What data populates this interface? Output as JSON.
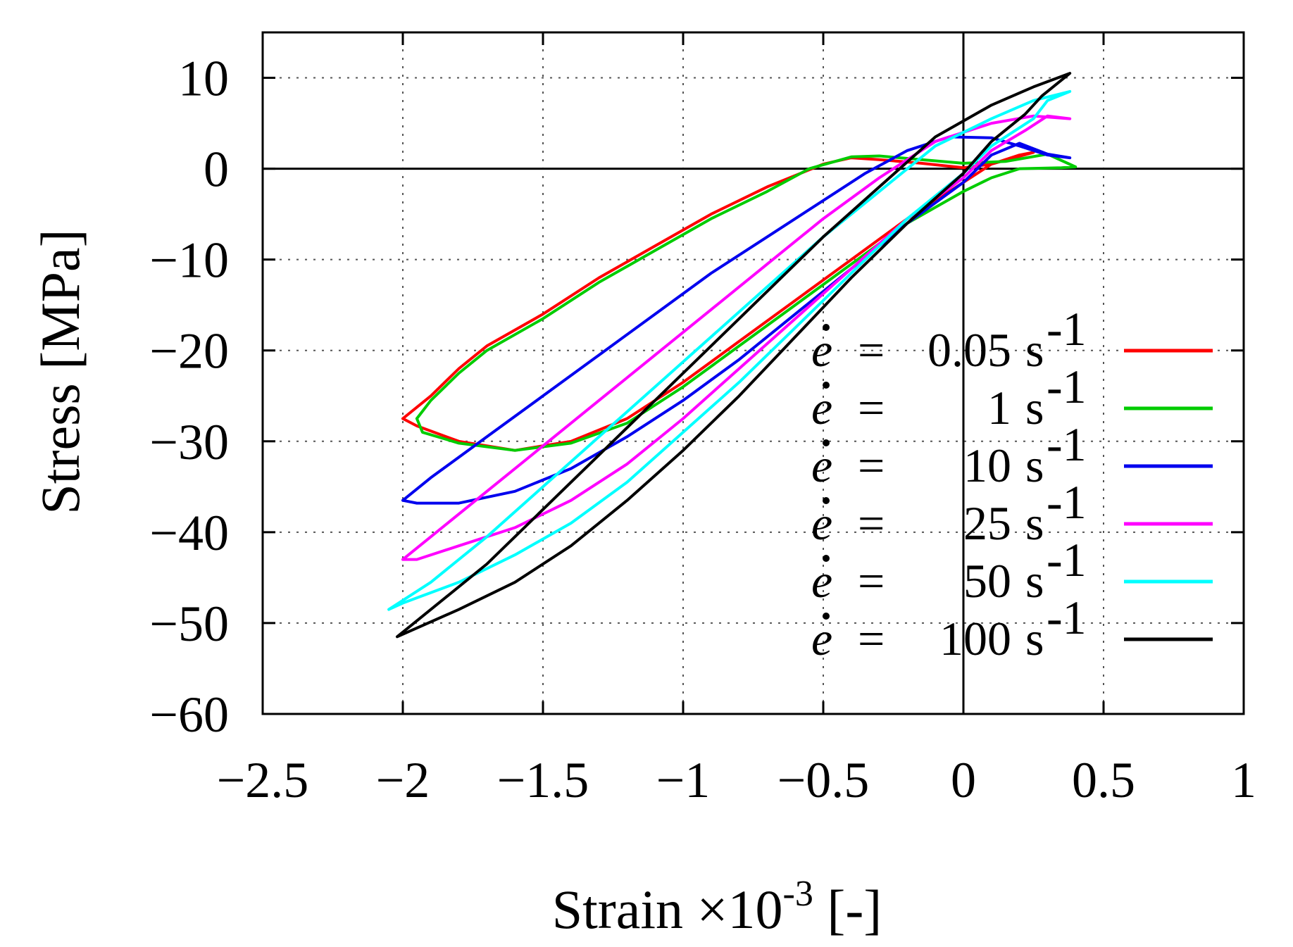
{
  "chart_data": {
    "type": "line",
    "title": "",
    "xlabel": "Strain ×10",
    "xlabel_exponent": "-3",
    "xlabel_unit": " [-]",
    "ylabel": "Stress [MPa]",
    "xlim": [
      -2.5,
      1
    ],
    "ylim": [
      -60,
      15
    ],
    "xticks": [
      -2.5,
      -2,
      -1.5,
      -1,
      -0.5,
      0,
      0.5,
      1
    ],
    "xtick_labels": [
      "−2.5",
      "−2",
      "−1.5",
      "−1",
      "−0.5",
      "0",
      "0.5",
      "1"
    ],
    "yticks": [
      10,
      0,
      -10,
      -20,
      -30,
      -40,
      -50,
      -60
    ],
    "ytick_labels": [
      "10",
      "0",
      "−10",
      "−20",
      "−30",
      "−40",
      "−50",
      "−60"
    ],
    "grid": true,
    "legend_position": "bottom-right",
    "series": [
      {
        "name": "ė = 0.05 s-1",
        "legend_symbol": "e",
        "legend_equals": "=",
        "legend_rate": "0.05",
        "legend_unit": "s",
        "legend_exp": "-1",
        "color": "#ff0000",
        "points": [
          [
            -2.0,
            -27.5
          ],
          [
            -1.9,
            -25.0
          ],
          [
            -1.8,
            -22.0
          ],
          [
            -1.7,
            -19.5
          ],
          [
            -1.5,
            -16.0
          ],
          [
            -1.3,
            -12.0
          ],
          [
            -1.1,
            -8.5
          ],
          [
            -0.9,
            -5.0
          ],
          [
            -0.7,
            -2.0
          ],
          [
            -0.5,
            0.5
          ],
          [
            -0.4,
            1.2
          ],
          [
            -0.3,
            1.0
          ],
          [
            -0.15,
            0.6
          ],
          [
            0.0,
            0.1
          ],
          [
            0.1,
            0.5
          ],
          [
            0.25,
            1.8
          ],
          [
            0.2,
            1.5
          ],
          [
            0.1,
            0.5
          ],
          [
            0.0,
            -1.5
          ],
          [
            -0.2,
            -5.5
          ],
          [
            -0.4,
            -10.0
          ],
          [
            -0.6,
            -14.5
          ],
          [
            -0.8,
            -19.0
          ],
          [
            -1.0,
            -23.5
          ],
          [
            -1.2,
            -27.5
          ],
          [
            -1.4,
            -30.0
          ],
          [
            -1.6,
            -31.0
          ],
          [
            -1.8,
            -30.0
          ],
          [
            -1.95,
            -28.3
          ],
          [
            -2.0,
            -27.5
          ]
        ]
      },
      {
        "name": "ė = 1 s-1",
        "legend_symbol": "e",
        "legend_equals": "=",
        "legend_rate": "1",
        "legend_unit": "s",
        "legend_exp": "-1",
        "color": "#00cc00",
        "points": [
          [
            -1.95,
            -27.5
          ],
          [
            -1.9,
            -25.5
          ],
          [
            -1.8,
            -22.5
          ],
          [
            -1.7,
            -20.0
          ],
          [
            -1.5,
            -16.5
          ],
          [
            -1.3,
            -12.5
          ],
          [
            -1.1,
            -9.0
          ],
          [
            -0.9,
            -5.5
          ],
          [
            -0.7,
            -2.5
          ],
          [
            -0.55,
            0.0
          ],
          [
            -0.4,
            1.3
          ],
          [
            -0.3,
            1.4
          ],
          [
            -0.15,
            1.0
          ],
          [
            0.0,
            0.6
          ],
          [
            0.15,
            0.8
          ],
          [
            0.3,
            1.6
          ],
          [
            0.4,
            0.2
          ],
          [
            0.35,
            0.1
          ],
          [
            0.2,
            0.0
          ],
          [
            0.1,
            -1.0
          ],
          [
            0.0,
            -2.5
          ],
          [
            -0.2,
            -6.0
          ],
          [
            -0.4,
            -10.5
          ],
          [
            -0.6,
            -15.0
          ],
          [
            -0.8,
            -19.5
          ],
          [
            -1.0,
            -24.0
          ],
          [
            -1.2,
            -28.0
          ],
          [
            -1.4,
            -30.2
          ],
          [
            -1.6,
            -31.0
          ],
          [
            -1.8,
            -30.2
          ],
          [
            -1.93,
            -29.0
          ],
          [
            -1.95,
            -27.5
          ]
        ]
      },
      {
        "name": "ė = 10 s-1",
        "legend_symbol": "e",
        "legend_equals": "=",
        "legend_rate": "10",
        "legend_unit": "s",
        "legend_exp": "-1",
        "color": "#0000ee",
        "points": [
          [
            -2.0,
            -36.5
          ],
          [
            -1.9,
            -34.0
          ],
          [
            -1.7,
            -29.5
          ],
          [
            -1.5,
            -25.0
          ],
          [
            -1.3,
            -20.5
          ],
          [
            -1.1,
            -16.0
          ],
          [
            -0.9,
            -11.5
          ],
          [
            -0.7,
            -7.5
          ],
          [
            -0.5,
            -3.5
          ],
          [
            -0.35,
            -0.5
          ],
          [
            -0.2,
            2.0
          ],
          [
            -0.05,
            3.5
          ],
          [
            0.1,
            3.4
          ],
          [
            0.2,
            2.5
          ],
          [
            0.3,
            1.5
          ],
          [
            0.38,
            1.2
          ],
          [
            0.3,
            1.6
          ],
          [
            0.2,
            2.8
          ],
          [
            0.1,
            1.5
          ],
          [
            0.0,
            -1.5
          ],
          [
            -0.2,
            -6.0
          ],
          [
            -0.4,
            -11.0
          ],
          [
            -0.6,
            -16.0
          ],
          [
            -0.8,
            -21.0
          ],
          [
            -1.0,
            -25.5
          ],
          [
            -1.2,
            -29.5
          ],
          [
            -1.4,
            -33.0
          ],
          [
            -1.6,
            -35.5
          ],
          [
            -1.8,
            -36.8
          ],
          [
            -1.95,
            -36.8
          ],
          [
            -2.0,
            -36.5
          ]
        ]
      },
      {
        "name": "ė = 25 s-1",
        "legend_symbol": "e",
        "legend_equals": "=",
        "legend_rate": "25",
        "legend_unit": "s",
        "legend_exp": "-1",
        "color": "#ff00ff",
        "points": [
          [
            -2.0,
            -43.0
          ],
          [
            -1.9,
            -40.5
          ],
          [
            -1.7,
            -35.5
          ],
          [
            -1.5,
            -30.5
          ],
          [
            -1.3,
            -25.5
          ],
          [
            -1.1,
            -20.5
          ],
          [
            -0.9,
            -15.5
          ],
          [
            -0.7,
            -10.5
          ],
          [
            -0.5,
            -5.5
          ],
          [
            -0.3,
            -1.0
          ],
          [
            -0.1,
            3.0
          ],
          [
            0.1,
            5.0
          ],
          [
            0.25,
            5.8
          ],
          [
            0.38,
            5.5
          ],
          [
            0.3,
            5.8
          ],
          [
            0.22,
            4.2
          ],
          [
            0.1,
            2.0
          ],
          [
            0.0,
            -1.0
          ],
          [
            -0.2,
            -5.5
          ],
          [
            -0.4,
            -11.0
          ],
          [
            -0.6,
            -16.5
          ],
          [
            -0.8,
            -22.0
          ],
          [
            -1.0,
            -27.5
          ],
          [
            -1.2,
            -32.5
          ],
          [
            -1.4,
            -36.5
          ],
          [
            -1.6,
            -39.5
          ],
          [
            -1.8,
            -41.5
          ],
          [
            -1.95,
            -43.0
          ],
          [
            -2.0,
            -43.0
          ]
        ]
      },
      {
        "name": "ė = 50 s-1",
        "legend_symbol": "e",
        "legend_equals": "=",
        "legend_rate": "50",
        "legend_unit": "s",
        "legend_exp": "-1",
        "color": "#00ffff",
        "points": [
          [
            -2.05,
            -48.5
          ],
          [
            -1.9,
            -45.5
          ],
          [
            -1.7,
            -40.5
          ],
          [
            -1.5,
            -35.0
          ],
          [
            -1.3,
            -29.5
          ],
          [
            -1.1,
            -24.0
          ],
          [
            -0.9,
            -18.5
          ],
          [
            -0.7,
            -13.0
          ],
          [
            -0.5,
            -7.5
          ],
          [
            -0.3,
            -2.5
          ],
          [
            -0.1,
            2.5
          ],
          [
            0.1,
            5.5
          ],
          [
            0.25,
            7.5
          ],
          [
            0.38,
            8.5
          ],
          [
            0.3,
            7.5
          ],
          [
            0.25,
            5.5
          ],
          [
            0.1,
            2.5
          ],
          [
            0.0,
            -0.5
          ],
          [
            -0.2,
            -5.5
          ],
          [
            -0.4,
            -11.5
          ],
          [
            -0.6,
            -17.5
          ],
          [
            -0.8,
            -23.5
          ],
          [
            -1.0,
            -29.0
          ],
          [
            -1.2,
            -34.5
          ],
          [
            -1.4,
            -39.0
          ],
          [
            -1.6,
            -42.5
          ],
          [
            -1.8,
            -45.5
          ],
          [
            -2.0,
            -47.8
          ],
          [
            -2.05,
            -48.5
          ]
        ]
      },
      {
        "name": "ė = 100 s-1",
        "legend_symbol": "e",
        "legend_equals": "=",
        "legend_rate": "100",
        "legend_unit": "s",
        "legend_exp": "-1",
        "color": "#000000",
        "points": [
          [
            -2.02,
            -51.5
          ],
          [
            -1.9,
            -48.5
          ],
          [
            -1.7,
            -43.5
          ],
          [
            -1.5,
            -37.5
          ],
          [
            -1.3,
            -31.5
          ],
          [
            -1.1,
            -25.5
          ],
          [
            -0.9,
            -19.5
          ],
          [
            -0.7,
            -13.5
          ],
          [
            -0.5,
            -7.5
          ],
          [
            -0.3,
            -2.0
          ],
          [
            -0.1,
            3.5
          ],
          [
            0.1,
            7.0
          ],
          [
            0.25,
            9.0
          ],
          [
            0.38,
            10.5
          ],
          [
            0.28,
            8.0
          ],
          [
            0.22,
            6.0
          ],
          [
            0.1,
            3.0
          ],
          [
            0.0,
            -0.5
          ],
          [
            -0.2,
            -6.0
          ],
          [
            -0.4,
            -12.0
          ],
          [
            -0.6,
            -18.5
          ],
          [
            -0.8,
            -25.0
          ],
          [
            -1.0,
            -31.0
          ],
          [
            -1.2,
            -36.5
          ],
          [
            -1.4,
            -41.5
          ],
          [
            -1.6,
            -45.5
          ],
          [
            -1.8,
            -48.5
          ],
          [
            -2.02,
            -51.5
          ]
        ]
      }
    ]
  }
}
